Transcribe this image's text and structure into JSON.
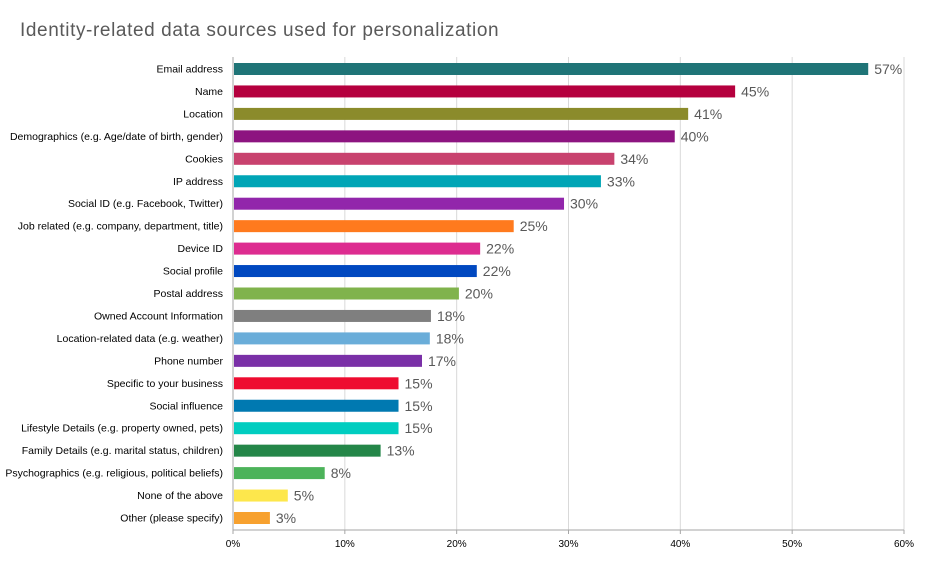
{
  "chart_data": {
    "type": "bar",
    "orientation": "horizontal",
    "title": "Identity-related data sources used for personalization",
    "xlabel": "",
    "ylabel": "",
    "xlim": [
      0,
      60
    ],
    "x_ticks": [
      "0%",
      "10%",
      "20%",
      "30%",
      "40%",
      "50%",
      "60%"
    ],
    "x_tick_values": [
      0,
      10,
      20,
      30,
      40,
      50,
      60
    ],
    "value_format": "percent",
    "grid": true,
    "legend": false,
    "categories": [
      "Email address",
      "Name",
      "Location",
      "Demographics (e.g. Age/date of birth, gender)",
      "Cookies",
      "IP address",
      "Social ID (e.g. Facebook, Twitter)",
      "Job related (e.g. company, department, title)",
      "Device ID",
      "Social profile",
      "Postal address",
      "Owned Account Information",
      "Location-related data (e.g. weather)",
      "Phone number",
      "Specific to your business",
      "Social influence",
      "Lifestyle Details (e.g. property owned, pets)",
      "Family Details (e.g. marital status, children)",
      "Psychographics (e.g. religious, political beliefs)",
      "None of the above",
      "Other (please specify)"
    ],
    "values": [
      56.8,
      44.9,
      40.7,
      39.5,
      34.1,
      32.9,
      29.6,
      25.1,
      22.1,
      21.8,
      20.2,
      17.7,
      17.6,
      16.9,
      14.8,
      14.8,
      14.8,
      13.2,
      8.2,
      4.9,
      3.3
    ],
    "value_labels": [
      "57%",
      "45%",
      "41%",
      "40%",
      "34%",
      "33%",
      "30%",
      "25%",
      "22%",
      "22%",
      "20%",
      "18%",
      "18%",
      "17%",
      "15%",
      "15%",
      "15%",
      "13%",
      "8%",
      "5%",
      "3%"
    ],
    "colors": [
      "#1f7477",
      "#b5003e",
      "#8b8b2b",
      "#8d1480",
      "#c8426e",
      "#00a5b6",
      "#9226ab",
      "#ff7a1e",
      "#dd2c90",
      "#0048c0",
      "#80b34c",
      "#7f7f7f",
      "#6aadd9",
      "#7a30a7",
      "#ee0c30",
      "#0079b1",
      "#00cdc0",
      "#248648",
      "#4cb35a",
      "#fde74c",
      "#f7a12f"
    ]
  }
}
